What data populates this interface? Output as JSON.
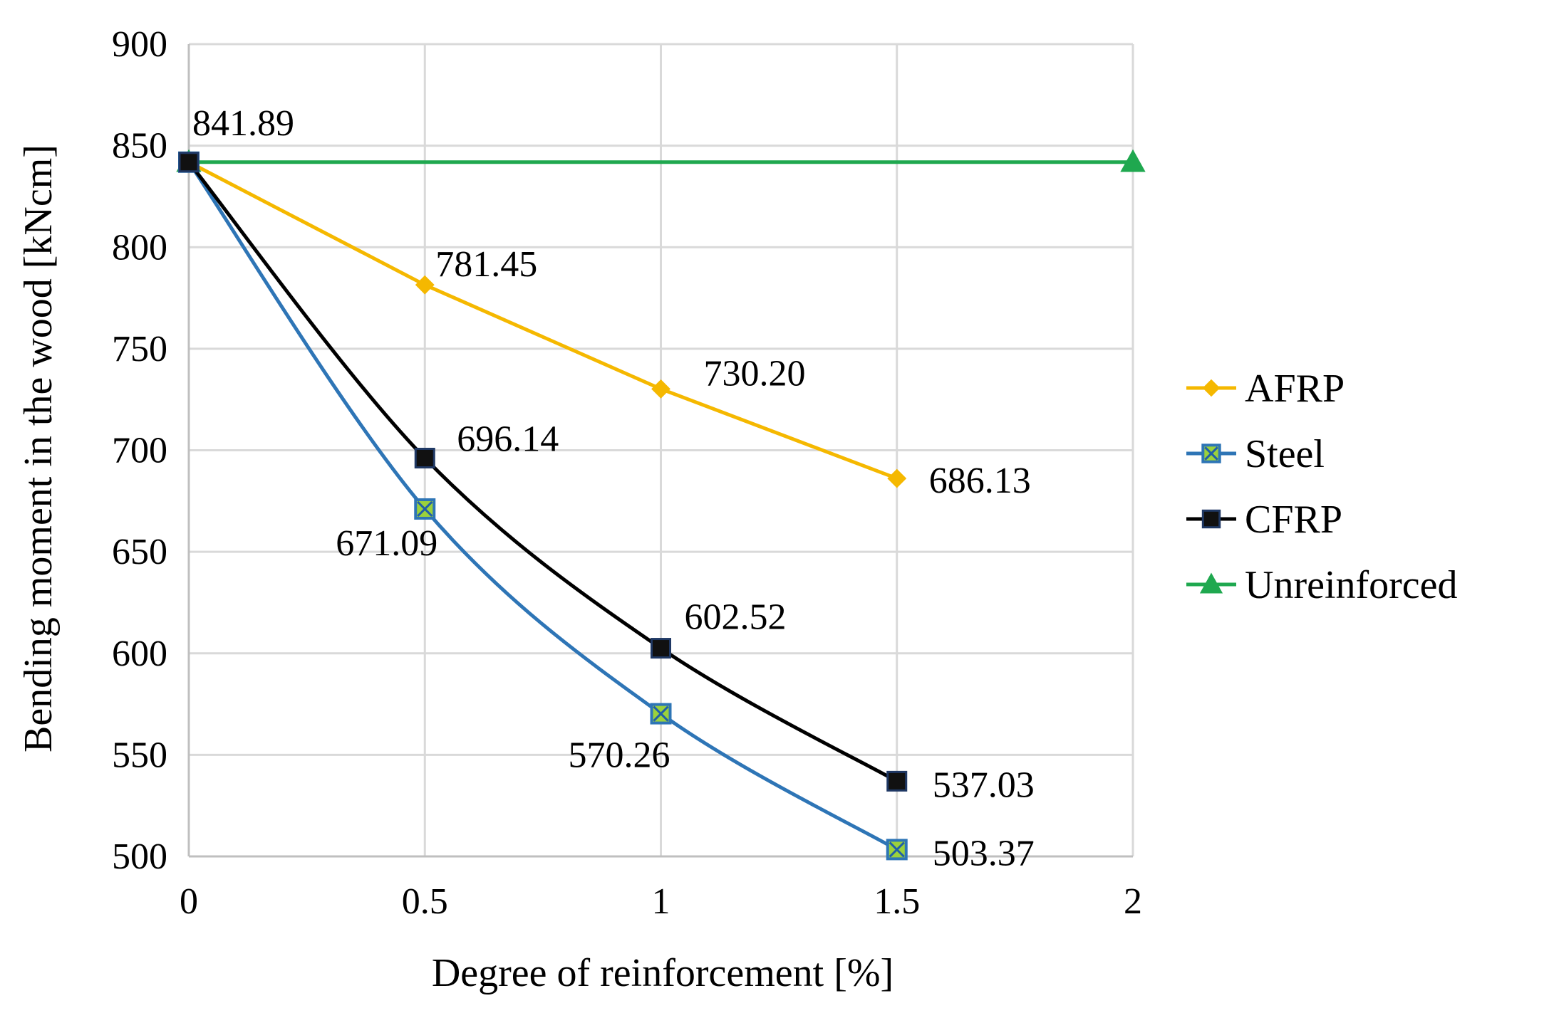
{
  "chart_data": {
    "type": "line",
    "title": "",
    "xlabel": "Degree of reinforcement [%]",
    "ylabel": "Bending moment in the wood [kNcm]",
    "xlim": [
      0,
      2
    ],
    "ylim": [
      500,
      900
    ],
    "x_ticks": [
      "0",
      "0.5",
      "1",
      "1.5",
      "2"
    ],
    "y_ticks": [
      "500",
      "550",
      "600",
      "650",
      "700",
      "750",
      "800",
      "850",
      "900"
    ],
    "grid": true,
    "legend_position": "right",
    "series": [
      {
        "name": "AFRP",
        "color": "#F5B800",
        "marker": "diamond",
        "smooth": false,
        "x": [
          0,
          0.5,
          1,
          1.5
        ],
        "values": [
          841.89,
          781.45,
          730.2,
          686.13
        ],
        "labels": [
          "",
          "781.45",
          "730.20",
          "686.13"
        ]
      },
      {
        "name": "Steel",
        "color": "#2E75B6",
        "marker": "x-square",
        "smooth": true,
        "x": [
          0,
          0.5,
          1,
          1.5
        ],
        "values": [
          841.89,
          671.09,
          570.26,
          503.37
        ],
        "labels": [
          "",
          "671.09",
          "570.26",
          "503.37"
        ]
      },
      {
        "name": "CFRP",
        "color": "#000000",
        "marker": "square",
        "smooth": true,
        "x": [
          0,
          0.5,
          1,
          1.5
        ],
        "values": [
          841.89,
          696.14,
          602.52,
          537.03
        ],
        "labels": [
          "841.89",
          "696.14",
          "602.52",
          "537.03"
        ]
      },
      {
        "name": "Unreinforced",
        "color": "#1FA84F",
        "marker": "triangle",
        "smooth": false,
        "x": [
          0,
          2
        ],
        "values": [
          841.89,
          841.89
        ],
        "labels": [
          "",
          ""
        ]
      }
    ]
  }
}
